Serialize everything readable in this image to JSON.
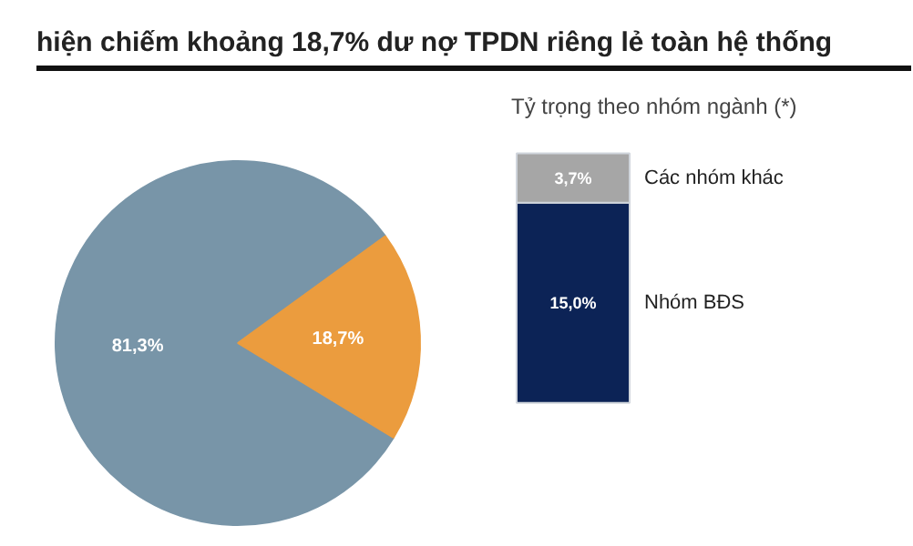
{
  "chart_data": [
    {
      "type": "pie",
      "title": "hiện chiếm khoảng 18,7% dư nợ TPDN riêng lẻ toàn hệ thống",
      "categories": [
        null,
        null
      ],
      "values": [
        81.3,
        18.7
      ],
      "colors": [
        "#7895a8",
        "#eb9c3e"
      ],
      "value_labels": [
        "81,3%",
        "18,7%"
      ]
    },
    {
      "type": "bar",
      "title": "Tỷ trọng theo nhóm ngành (*)",
      "stacked": true,
      "categories": [
        null
      ],
      "series": [
        {
          "name": "Nhóm BĐS",
          "color": "#0c2356",
          "values": [
            15.0
          ],
          "value_labels": [
            "15,0%"
          ]
        },
        {
          "name": "Các nhóm khác",
          "color": "#a6a6a6",
          "values": [
            3.7
          ],
          "value_labels": [
            "3,7%"
          ]
        }
      ]
    }
  ]
}
